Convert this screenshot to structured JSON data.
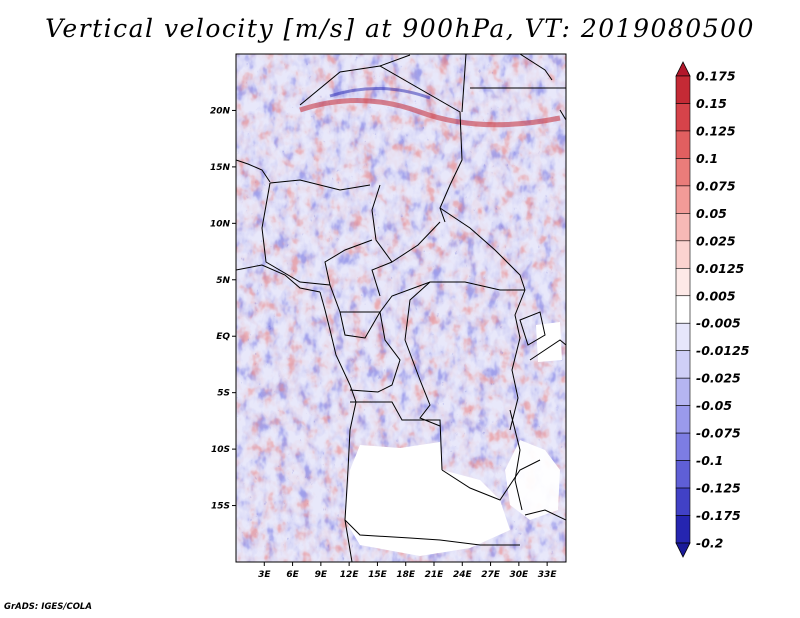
{
  "title": "Vertical velocity [m/s] at 900hPa, VT: 2019080500",
  "credit": "GrADS: IGES/COLA",
  "map": {
    "field": "vertical velocity",
    "units": "m/s",
    "level": "900hPa",
    "valid_time": "2019080500",
    "lon_range": [
      0,
      35
    ],
    "lat_range": [
      -20,
      25
    ],
    "lat_labels": [
      {
        "lat": 20,
        "label": "20N"
      },
      {
        "lat": 15,
        "label": "15N"
      },
      {
        "lat": 10,
        "label": "10N"
      },
      {
        "lat": 5,
        "label": "5N"
      },
      {
        "lat": 0,
        "label": "EQ"
      },
      {
        "lat": -5,
        "label": "5S"
      },
      {
        "lat": -10,
        "label": "10S"
      },
      {
        "lat": -15,
        "label": "15S"
      }
    ],
    "lon_labels": [
      {
        "lon": 3,
        "label": "3E"
      },
      {
        "lon": 6,
        "label": "6E"
      },
      {
        "lon": 9,
        "label": "9E"
      },
      {
        "lon": 12,
        "label": "12E"
      },
      {
        "lon": 15,
        "label": "15E"
      },
      {
        "lon": 18,
        "label": "18E"
      },
      {
        "lon": 21,
        "label": "21E"
      },
      {
        "lon": 24,
        "label": "24E"
      },
      {
        "lon": 27,
        "label": "27E"
      },
      {
        "lon": 30,
        "label": "30E"
      },
      {
        "lon": 33,
        "label": "33E"
      }
    ]
  },
  "colorbar": {
    "levels": [
      {
        "label": "0.175",
        "color": "#b2182b"
      },
      {
        "label": "0.15",
        "color": "#c42a35"
      },
      {
        "label": "0.125",
        "color": "#d6434a"
      },
      {
        "label": "0.1",
        "color": "#e15f60"
      },
      {
        "label": "0.075",
        "color": "#ea7c7a"
      },
      {
        "label": "0.05",
        "color": "#f29b98"
      },
      {
        "label": "0.025",
        "color": "#f7b9b6"
      },
      {
        "label": "0.0125",
        "color": "#fbd3d0"
      },
      {
        "label": "0.005",
        "color": "#fde9e7"
      },
      {
        "label": "-0.005",
        "color": "#ffffff"
      },
      {
        "label": "-0.0125",
        "color": "#e6e6fb"
      },
      {
        "label": "-0.025",
        "color": "#cfcff7"
      },
      {
        "label": "-0.05",
        "color": "#b5b5f1"
      },
      {
        "label": "-0.075",
        "color": "#9a9aec"
      },
      {
        "label": "-0.1",
        "color": "#7d7de3"
      },
      {
        "label": "-0.125",
        "color": "#5f5fd6"
      },
      {
        "label": "-0.175",
        "color": "#4141c6"
      },
      {
        "label": "-0.2",
        "color": "#2525b0"
      },
      {
        "label": "",
        "color": "#1a1a9a"
      }
    ]
  }
}
